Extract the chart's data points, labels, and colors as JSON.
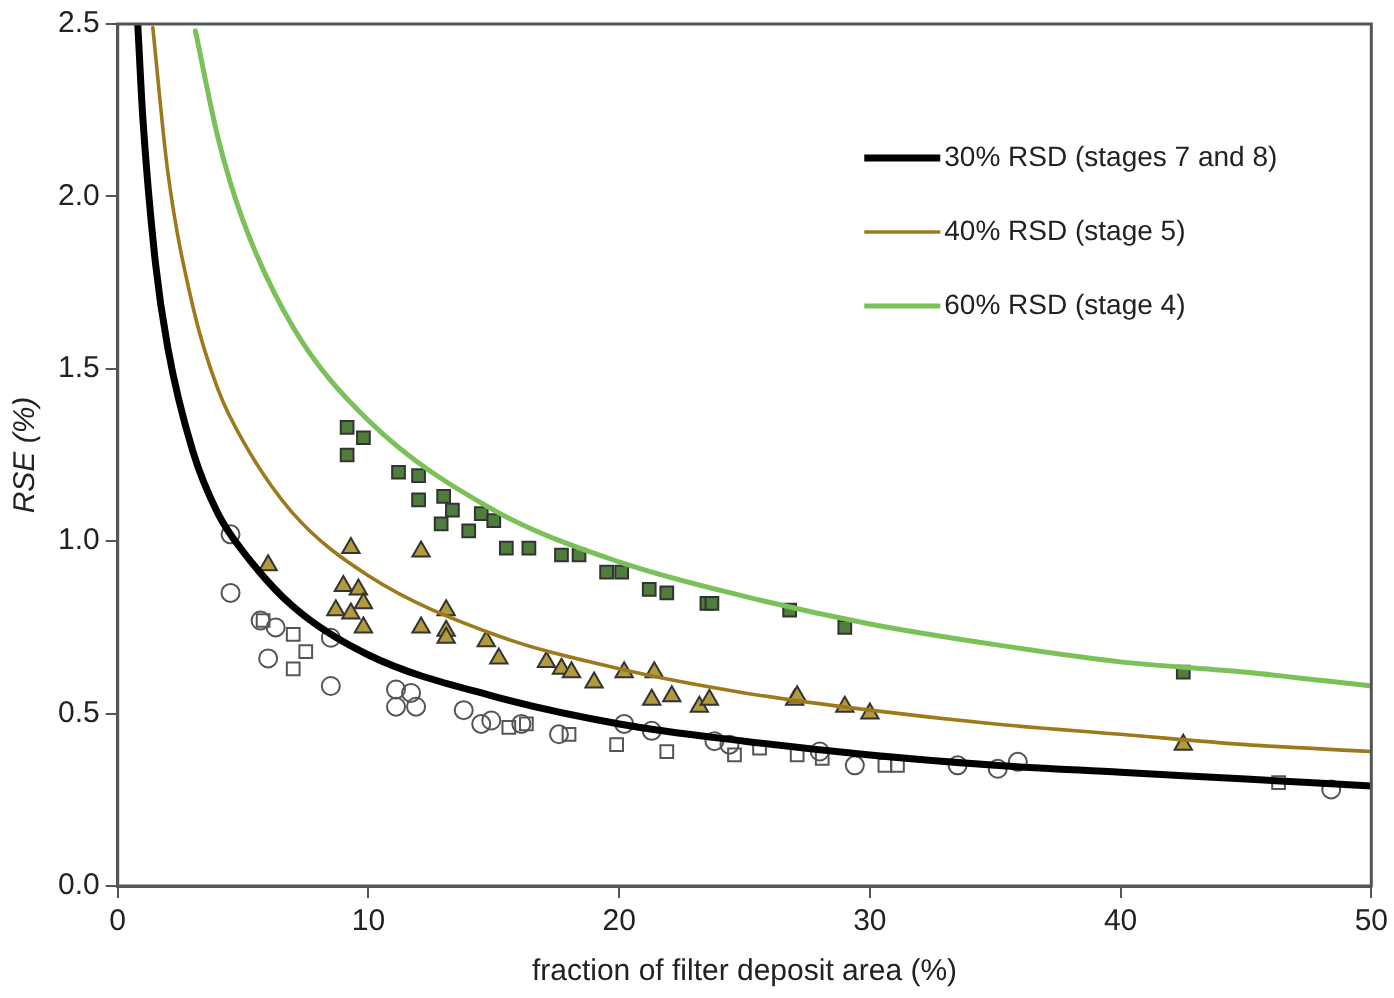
{
  "chart_data": {
    "type": "scatter",
    "xlabel": "fraction of filter deposit area (%)",
    "ylabel": "RSE (%)",
    "xlim": [
      0,
      50
    ],
    "xticks": [
      0,
      10,
      20,
      30,
      40,
      50
    ],
    "ylim": [
      0,
      2.5
    ],
    "yticks": [
      {
        "value": 0,
        "label": "0.0"
      },
      {
        "value": 0.5,
        "label": "0.5"
      },
      {
        "value": 1,
        "label": "1.0"
      },
      {
        "value": 1.5,
        "label": "1.5"
      },
      {
        "value": 2,
        "label": "2.0"
      },
      {
        "value": 2.5,
        "label": "2.5"
      }
    ],
    "grid": false,
    "legend": "top right",
    "series": [
      {
        "marker": "circle",
        "color": "#555555",
        "x": [
          4.5,
          4.5,
          5.7,
          6.3,
          6.0,
          8.5,
          8.5,
          11.1,
          11.1,
          11.7,
          11.9,
          13.8,
          14.5,
          14.9,
          16.1,
          17.6,
          20.2,
          21.3,
          23.8,
          24.4,
          28.0,
          29.4,
          33.5,
          35.1,
          35.9,
          48.4
        ],
        "values": [
          1.02,
          0.85,
          0.77,
          0.75,
          0.66,
          0.72,
          0.58,
          0.57,
          0.52,
          0.56,
          0.52,
          0.51,
          0.47,
          0.48,
          0.47,
          0.44,
          0.47,
          0.45,
          0.42,
          0.41,
          0.39,
          0.35,
          0.35,
          0.34,
          0.36,
          0.28
        ]
      },
      {
        "marker": "square",
        "color": "#555555",
        "x": [
          5.8,
          7.0,
          7.5,
          7.0,
          15.6,
          16.3,
          18.0,
          19.9,
          21.9,
          24.6,
          25.6,
          27.1,
          28.1,
          30.6,
          31.1,
          46.3
        ],
        "values": [
          0.77,
          0.73,
          0.68,
          0.63,
          0.46,
          0.47,
          0.44,
          0.41,
          0.39,
          0.38,
          0.4,
          0.38,
          0.37,
          0.35,
          0.35,
          0.3
        ]
      },
      {
        "marker": "triangle",
        "color": "#b39a3a",
        "x": [
          6.0,
          9.3,
          12.1,
          9.0,
          9.6,
          8.7,
          9.3,
          9.8,
          9.8,
          12.1,
          13.1,
          13.1,
          13.1,
          14.7,
          15.2,
          17.1,
          17.7,
          18.1,
          19.0,
          20.2,
          21.4,
          21.3,
          22.1,
          23.2,
          23.6,
          27.0,
          27.1,
          29.0,
          30.0,
          42.5
        ],
        "values": [
          0.93,
          0.98,
          0.97,
          0.87,
          0.86,
          0.8,
          0.79,
          0.82,
          0.75,
          0.75,
          0.8,
          0.74,
          0.72,
          0.71,
          0.66,
          0.65,
          0.63,
          0.62,
          0.59,
          0.62,
          0.62,
          0.54,
          0.55,
          0.52,
          0.54,
          0.54,
          0.55,
          0.52,
          0.5,
          0.41
        ]
      },
      {
        "marker": "square",
        "color": "#4f7d3c",
        "x": [
          9.15,
          9.8,
          9.15,
          11.2,
          12.0,
          12.0,
          13.0,
          13.35,
          12.9,
          14.0,
          14.5,
          15.0,
          15.5,
          16.4,
          17.7,
          18.4,
          19.5,
          20.1,
          21.2,
          21.9,
          23.5,
          23.7,
          26.8,
          29.0,
          42.5
        ],
        "values": [
          1.33,
          1.3,
          1.25,
          1.2,
          1.19,
          1.12,
          1.13,
          1.09,
          1.05,
          1.03,
          1.08,
          1.06,
          0.98,
          0.98,
          0.96,
          0.96,
          0.91,
          0.91,
          0.86,
          0.85,
          0.82,
          0.82,
          0.8,
          0.75,
          0.62
        ]
      },
      {
        "type": "line",
        "name": "30% RSD (stages 7 and 8)",
        "color": "#000000",
        "marker": "none",
        "x": [
          0.8,
          1,
          1.5,
          2,
          3,
          4,
          5,
          7,
          10,
          15,
          20,
          25,
          30,
          35,
          40,
          45,
          50
        ],
        "values": [
          2.5,
          2.23,
          1.81,
          1.56,
          1.26,
          1.08,
          0.97,
          0.81,
          0.67,
          0.55,
          0.47,
          0.42,
          0.38,
          0.35,
          0.33,
          0.31,
          0.29
        ]
      },
      {
        "type": "line",
        "name": "40% RSD (stage 5)",
        "color": "#9c7a1c",
        "marker": "none",
        "x": [
          1.4,
          2,
          3,
          4,
          5,
          7,
          10,
          15,
          20,
          25,
          30,
          35,
          40,
          45,
          50
        ],
        "values": [
          2.49,
          2.07,
          1.68,
          1.44,
          1.29,
          1.08,
          0.9,
          0.73,
          0.63,
          0.56,
          0.51,
          0.47,
          0.44,
          0.41,
          0.39
        ]
      },
      {
        "type": "line",
        "name": "60% RSD (stage 4)",
        "color": "#7cc05a",
        "marker": "none",
        "x": [
          3.1,
          4,
          5,
          7,
          10,
          15,
          20,
          25,
          30,
          35,
          40,
          45,
          50
        ],
        "values": [
          2.48,
          2.17,
          1.93,
          1.62,
          1.35,
          1.09,
          0.94,
          0.84,
          0.76,
          0.7,
          0.65,
          0.62,
          0.58
        ]
      }
    ]
  }
}
